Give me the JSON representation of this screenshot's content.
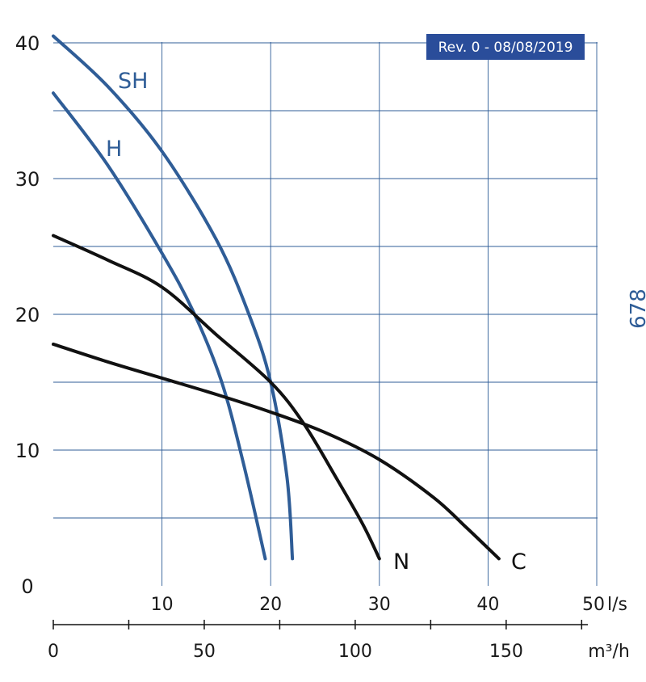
{
  "revision_badge": "Rev. 0 - 08/08/2019",
  "side_label": "678",
  "colors": {
    "blue": "#2f5d97",
    "black": "#111111",
    "grid": "#2f5d97",
    "badge_bg": "#2a4d9a"
  },
  "chart_data": {
    "type": "line",
    "ylabel": "",
    "xlabel": "",
    "ylim": [
      0,
      40
    ],
    "xlim": [
      0,
      50
    ],
    "y_ticks": [
      "0",
      "10",
      "20",
      "30",
      "40"
    ],
    "x_axis_ls": {
      "unit": "l/s",
      "ticks": [
        "10",
        "20",
        "30",
        "40",
        "50"
      ]
    },
    "x_axis_m3h": {
      "unit": "m³/h",
      "ticks": [
        "0",
        "50",
        "100",
        "150"
      ]
    },
    "series": [
      {
        "name": "SH",
        "color": "#2f5d97",
        "points": [
          [
            0,
            40.5
          ],
          [
            5,
            36.8
          ],
          [
            10,
            32
          ],
          [
            15,
            25.5
          ],
          [
            18,
            20
          ],
          [
            20,
            15
          ],
          [
            21.5,
            8
          ],
          [
            22,
            2
          ]
        ]
      },
      {
        "name": "H",
        "color": "#2f5d97",
        "points": [
          [
            0,
            36.3
          ],
          [
            5,
            31
          ],
          [
            10,
            24.5
          ],
          [
            13,
            20
          ],
          [
            15.5,
            15
          ],
          [
            17.5,
            9
          ],
          [
            19.5,
            2
          ]
        ]
      },
      {
        "name": "N",
        "color": "#111111",
        "points": [
          [
            0,
            25.8
          ],
          [
            5,
            24
          ],
          [
            10,
            22
          ],
          [
            15,
            18.5
          ],
          [
            20,
            15
          ],
          [
            23,
            12
          ],
          [
            26,
            8
          ],
          [
            28.5,
            4.5
          ],
          [
            30,
            2
          ]
        ]
      },
      {
        "name": "C",
        "color": "#111111",
        "points": [
          [
            0,
            17.8
          ],
          [
            5,
            16.5
          ],
          [
            10,
            15.3
          ],
          [
            15,
            14.1
          ],
          [
            20,
            12.8
          ],
          [
            25,
            11.3
          ],
          [
            30,
            9.3
          ],
          [
            35,
            6.5
          ],
          [
            38,
            4.3
          ],
          [
            41,
            2
          ]
        ]
      }
    ]
  }
}
